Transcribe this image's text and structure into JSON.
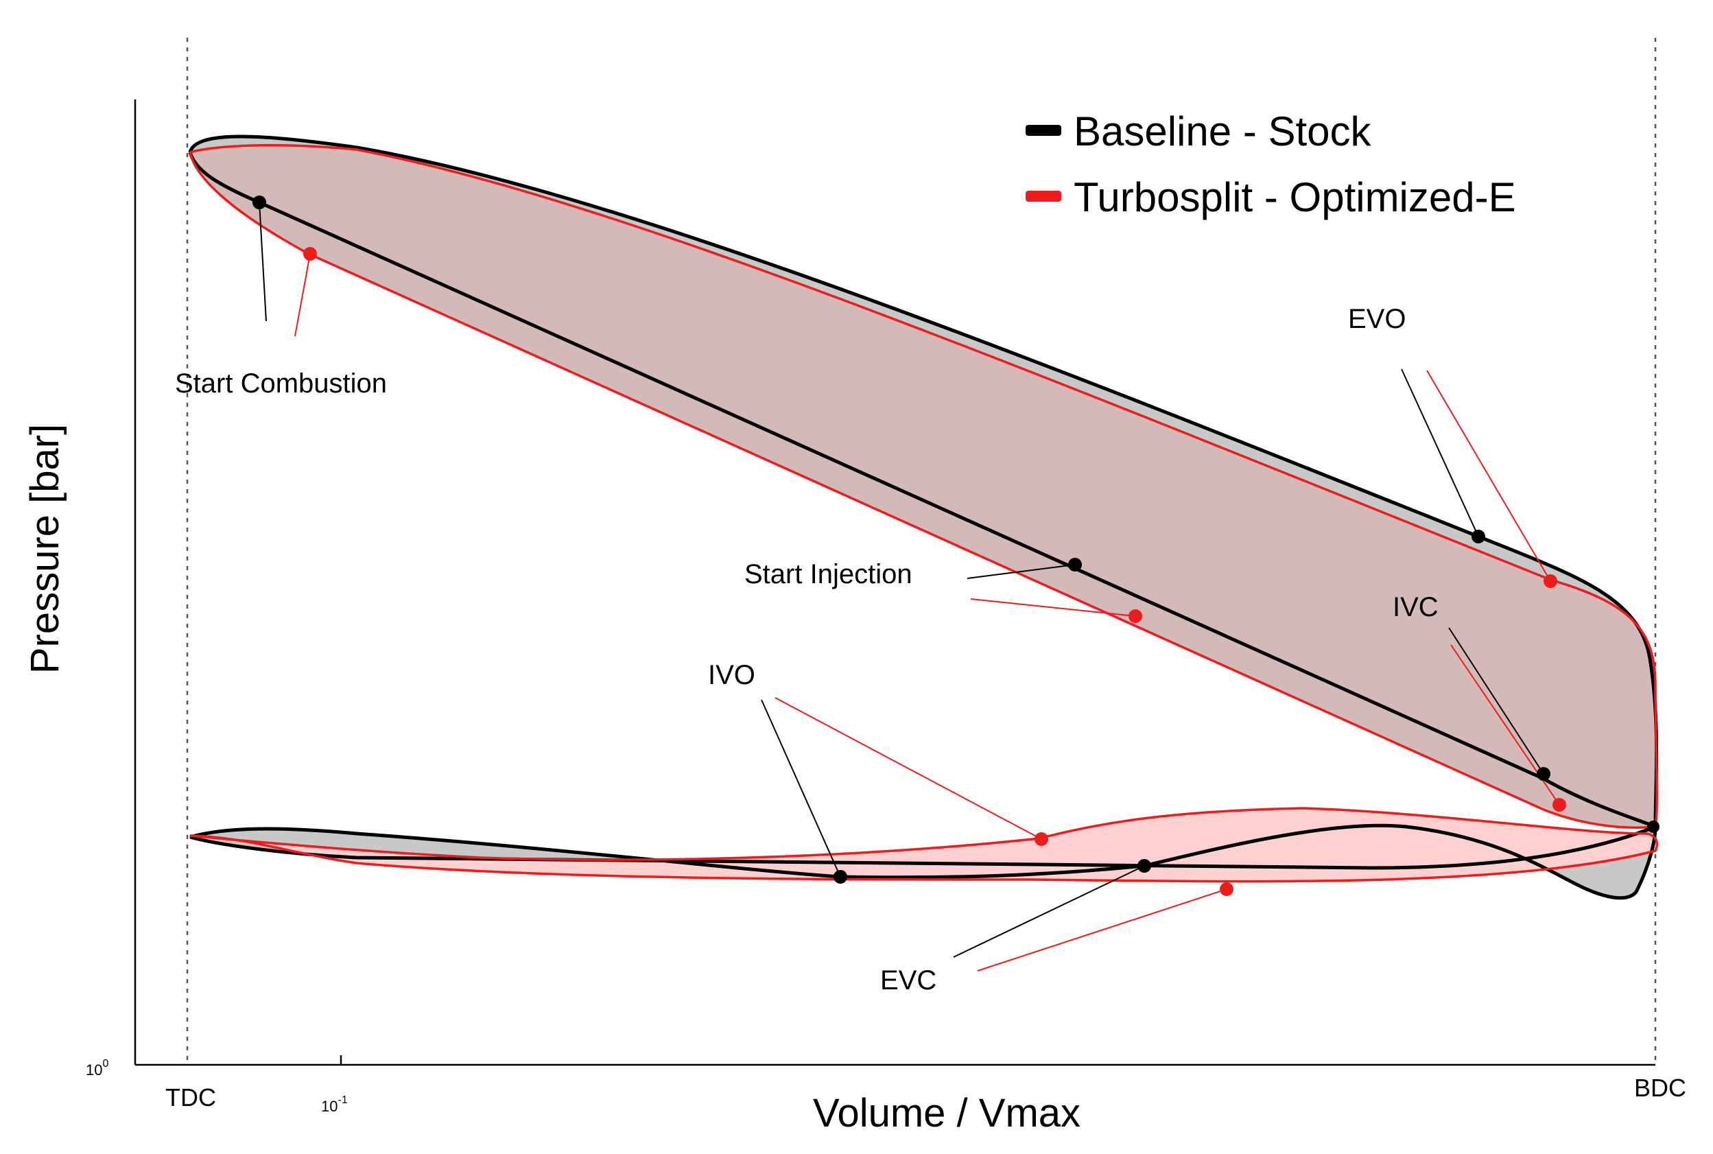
{
  "chart_data": {
    "type": "line",
    "title": "",
    "xlabel": "Volume / Vmax",
    "ylabel": "Pressure [bar]",
    "xscale": "log",
    "yscale": "log",
    "x_ticks": [
      {
        "label": "TDC",
        "value": 0.066
      },
      {
        "label": "10",
        "exponent": "-1",
        "value": 0.1
      },
      {
        "label": "BDC",
        "value": 1.0
      }
    ],
    "y_ticks": [
      {
        "label": "10",
        "exponent": "0",
        "value": 1
      }
    ],
    "grid": false,
    "legend_position": "top-right",
    "series": [
      {
        "name": "Baseline - Stock",
        "color": "#000000",
        "fill": "#c8c8c8"
      },
      {
        "name": "Turbosplit - Optimized-E",
        "color": "#ee1c1c",
        "fill": "#ffd0d0"
      }
    ],
    "annotations": [
      {
        "label": "Start Combustion"
      },
      {
        "label": "Start Injection"
      },
      {
        "label": "EVO"
      },
      {
        "label": "IVC"
      },
      {
        "label": "IVO"
      },
      {
        "label": "EVC"
      }
    ]
  }
}
